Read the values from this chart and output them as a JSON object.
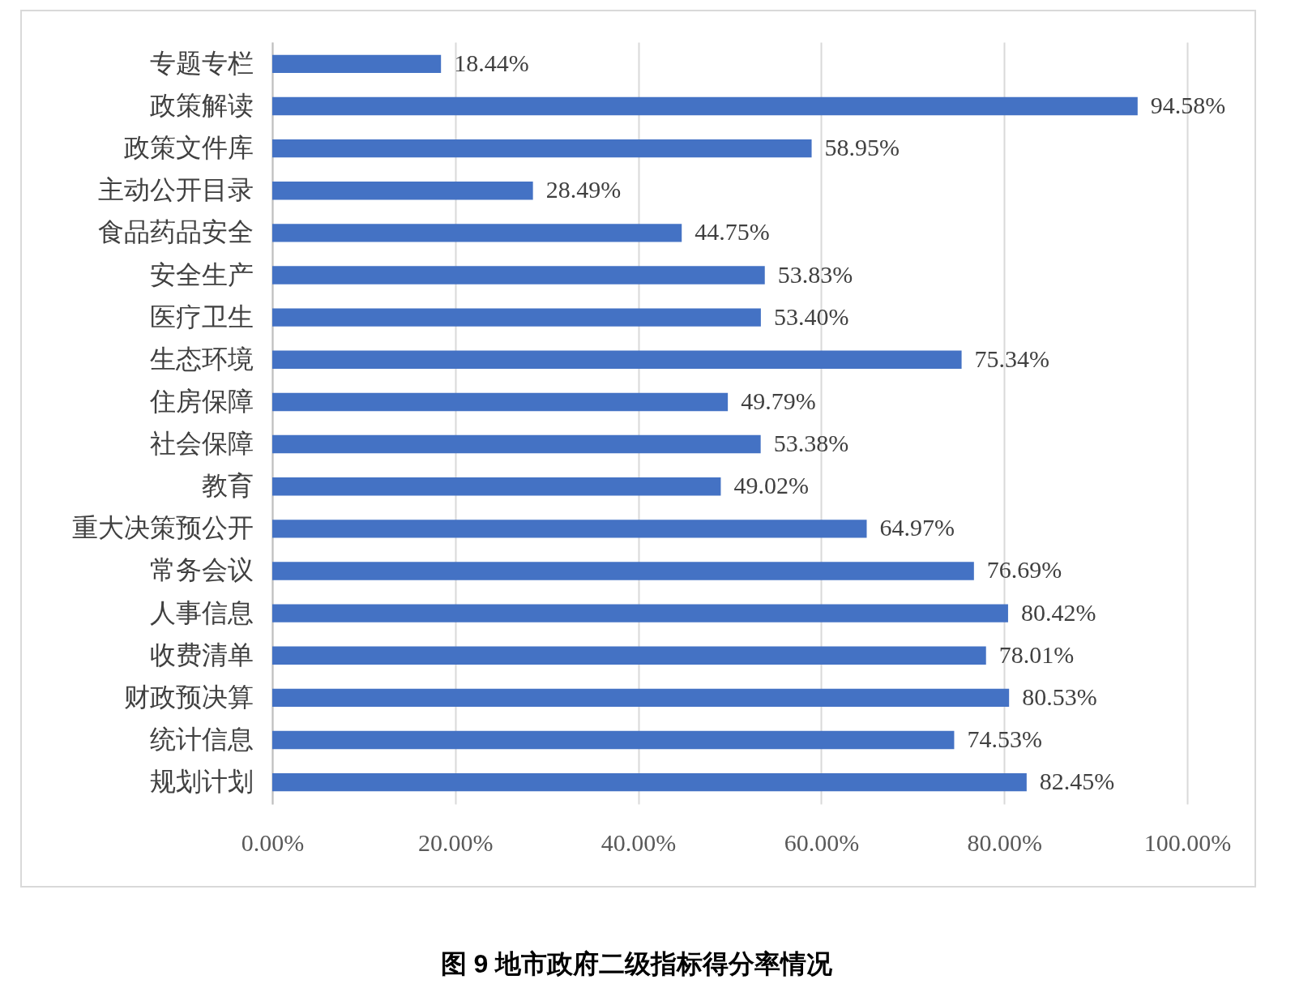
{
  "chart_data": {
    "type": "bar",
    "orientation": "horizontal",
    "title": "图 9  地市政府二级指标得分率情况",
    "categories": [
      "专题专栏",
      "政策解读",
      "政策文件库",
      "主动公开目录",
      "食品药品安全",
      "安全生产",
      "医疗卫生",
      "生态环境",
      "住房保障",
      "社会保障",
      "教育",
      "重大决策预公开",
      "常务会议",
      "人事信息",
      "收费清单",
      "财政预决算",
      "统计信息",
      "规划计划"
    ],
    "values": [
      18.44,
      94.58,
      58.95,
      28.49,
      44.75,
      53.83,
      53.4,
      75.34,
      49.79,
      53.38,
      49.02,
      64.97,
      76.69,
      80.42,
      78.01,
      80.53,
      74.53,
      82.45
    ],
    "value_labels": [
      "18.44%",
      "94.58%",
      "58.95%",
      "28.49%",
      "44.75%",
      "53.83%",
      "53.40%",
      "75.34%",
      "49.79%",
      "53.38%",
      "49.02%",
      "64.97%",
      "76.69%",
      "80.42%",
      "78.01%",
      "80.53%",
      "74.53%",
      "82.45%"
    ],
    "color": "#4472c4",
    "xlim": [
      0,
      100
    ],
    "xticks": [
      {
        "value": 0,
        "label": "0.00%"
      },
      {
        "value": 20,
        "label": "20.00%"
      },
      {
        "value": 40,
        "label": "40.00%"
      },
      {
        "value": 60,
        "label": "60.00%"
      },
      {
        "value": 80,
        "label": "80.00%"
      },
      {
        "value": 100,
        "label": "100.00%"
      }
    ],
    "grid": "x"
  }
}
